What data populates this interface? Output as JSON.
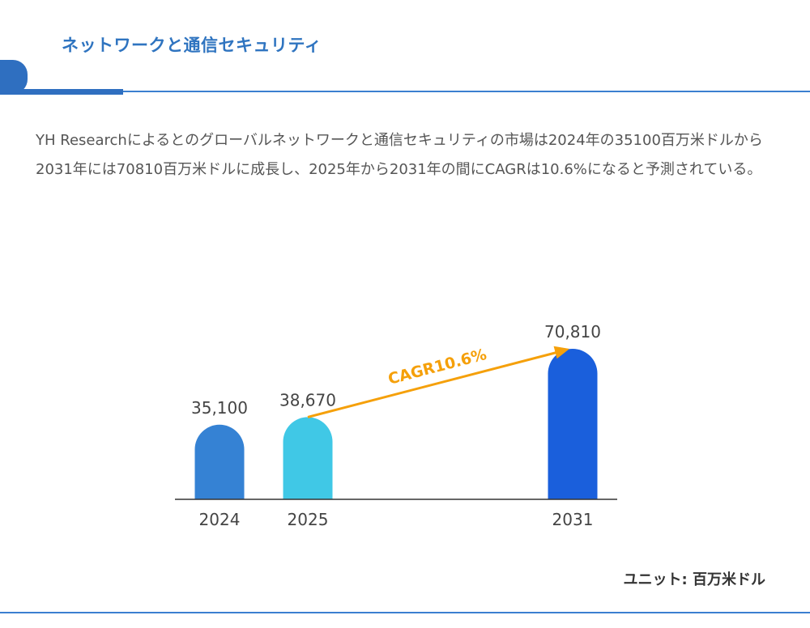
{
  "header": {
    "title": "ネットワークと通信セキュリティ"
  },
  "description": "YH Researchによるとのグローバルネットワークと通信セキュリティの市場は2024年の35100百万米ドルから2031年には70810百万米ドルに成長し、2025年から2031年の間にCAGRは10.6%になると予測されている。",
  "unit_label": "ユニット: 百万米ドル",
  "chart_data": {
    "type": "bar",
    "categories": [
      "2024",
      "2025",
      "2031"
    ],
    "values": [
      35100,
      38670,
      70810
    ],
    "value_labels": [
      "35,100",
      "38,670",
      "70,810"
    ],
    "colors": [
      "#3582d4",
      "#40c8e6",
      "#1a5fdc"
    ],
    "annotation": {
      "text": "CAGR10.6%",
      "from": "2025",
      "to": "2031",
      "color": "#f5a00a"
    },
    "ylim": [
      0,
      70810
    ],
    "grid": false
  }
}
